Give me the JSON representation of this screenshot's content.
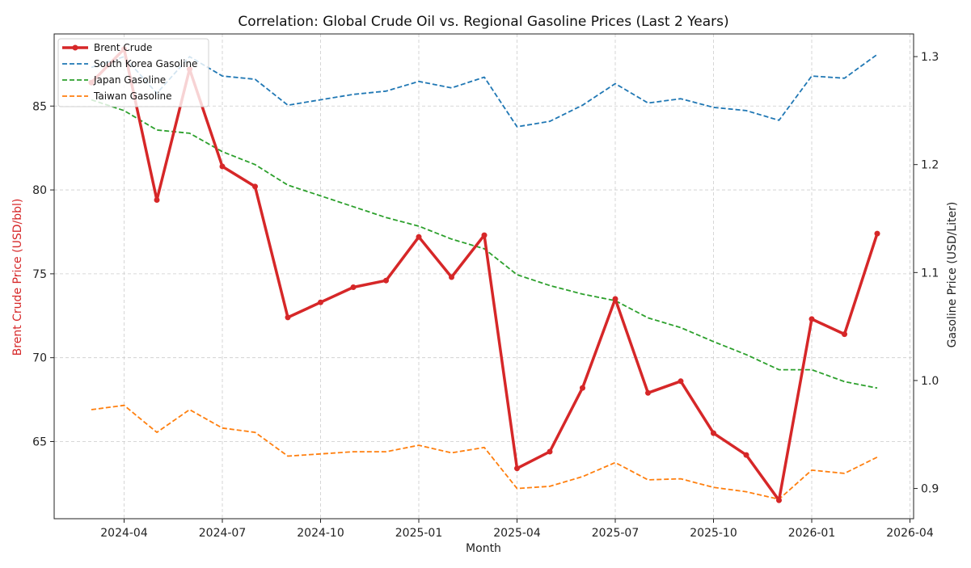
{
  "chart_data": {
    "type": "line",
    "title": "Correlation: Global Crude Oil vs. Regional Gasoline Prices (Last 2 Years)",
    "xlabel": "Month",
    "ylabel_left": "Brent Crude Price (USD/bbl)",
    "ylabel_right": "Gasoline Price (USD/Liter)",
    "x": [
      "2024-03",
      "2024-04",
      "2024-05",
      "2024-06",
      "2024-07",
      "2024-08",
      "2024-09",
      "2024-10",
      "2024-11",
      "2024-12",
      "2025-01",
      "2025-02",
      "2025-03",
      "2025-04",
      "2025-05",
      "2025-06",
      "2025-07",
      "2025-08",
      "2025-09",
      "2025-10",
      "2025-11",
      "2025-12",
      "2026-01",
      "2026-02",
      "2026-03"
    ],
    "x_ticks": [
      "2024-04",
      "2024-07",
      "2024-10",
      "2025-01",
      "2025-04",
      "2025-07",
      "2025-10",
      "2026-01",
      "2026-04"
    ],
    "ylim_left": [
      60.4,
      89.3
    ],
    "ylim_right": [
      0.872,
      1.321
    ],
    "y_ticks_left": [
      65,
      70,
      75,
      80,
      85
    ],
    "y_ticks_right": [
      0.9,
      1.0,
      1.1,
      1.2,
      1.3
    ],
    "grid": true,
    "legend_position": "top-left",
    "series": [
      {
        "name": "Brent Crude",
        "axis": "left",
        "color": "#d62728",
        "style": "solid-marker",
        "values": [
          86.4,
          88.4,
          79.4,
          87.2,
          81.4,
          80.2,
          72.4,
          73.3,
          74.2,
          74.6,
          77.2,
          74.8,
          77.3,
          63.4,
          64.4,
          68.2,
          73.5,
          67.9,
          68.6,
          65.5,
          64.2,
          61.5,
          72.3,
          71.4,
          77.4
        ]
      },
      {
        "name": "South Korea Gasoline",
        "axis": "right",
        "color": "#1f77b4",
        "style": "dashed",
        "values": [
          1.29,
          1.3,
          1.266,
          1.3,
          1.282,
          1.279,
          1.255,
          1.26,
          1.265,
          1.268,
          1.277,
          1.271,
          1.281,
          1.235,
          1.24,
          1.255,
          1.275,
          1.257,
          1.261,
          1.253,
          1.25,
          1.241,
          1.282,
          1.28,
          1.302
        ]
      },
      {
        "name": "Japan Gasoline",
        "axis": "right",
        "color": "#2ca02c",
        "style": "dashed",
        "values": [
          1.26,
          1.25,
          1.232,
          1.229,
          1.212,
          1.2,
          1.181,
          1.171,
          1.161,
          1.151,
          1.143,
          1.131,
          1.122,
          1.098,
          1.088,
          1.08,
          1.074,
          1.058,
          1.049,
          1.036,
          1.024,
          1.01,
          1.01,
          0.999,
          0.993
        ]
      },
      {
        "name": "Taiwan Gasoline",
        "axis": "right",
        "color": "#ff7f0e",
        "style": "dashed",
        "values": [
          0.973,
          0.977,
          0.952,
          0.973,
          0.956,
          0.952,
          0.93,
          0.932,
          0.934,
          0.934,
          0.94,
          0.933,
          0.938,
          0.9,
          0.902,
          0.911,
          0.924,
          0.908,
          0.909,
          0.901,
          0.897,
          0.89,
          0.917,
          0.914,
          0.929
        ]
      }
    ]
  }
}
